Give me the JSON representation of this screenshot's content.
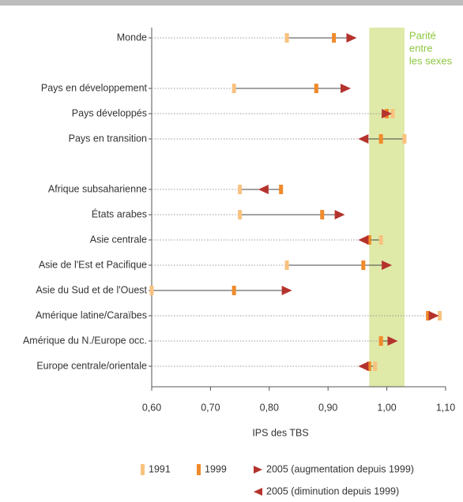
{
  "chart_data": {
    "type": "arrow-dot",
    "categories": [
      "Monde",
      null,
      "Pays en développement",
      "Pays développés",
      "Pays en transition",
      null,
      "Afrique subsaharienne",
      "États arabes",
      "Asie centrale",
      "Asie de l'Est et Pacifique",
      "Asie du Sud et de l'Ouest",
      "Amérique latine/Caraïbes",
      "Amérique du N./Europe occ.",
      "Europe centrale/orientale"
    ],
    "series": [
      {
        "name": "1991",
        "color": "#f9c27f",
        "values": [
          0.83,
          null,
          0.74,
          1.01,
          1.03,
          null,
          0.75,
          0.75,
          0.99,
          0.83,
          0.6,
          1.09,
          0.99,
          0.98
        ]
      },
      {
        "name": "1999",
        "color": "#f08a2b",
        "values": [
          0.91,
          null,
          0.88,
          1.0,
          0.99,
          null,
          0.82,
          0.89,
          0.97,
          0.96,
          0.74,
          1.07,
          0.99,
          0.97
        ]
      },
      {
        "name_increase": "2005 (augmentation depuis 1999)",
        "name_decrease": "2005 (diminution depuis 1999)",
        "color": "#b5332d",
        "values": [
          0.94,
          null,
          0.93,
          1.0,
          0.96,
          null,
          0.79,
          0.92,
          0.96,
          1.0,
          0.83,
          1.08,
          1.01,
          0.96
        ]
      }
    ],
    "xlabel": "IPS des TBS",
    "xlim": [
      0.6,
      1.1
    ],
    "xticks": [
      {
        "value": 0.6,
        "label": "0,60"
      },
      {
        "value": 0.7,
        "label": "0,70"
      },
      {
        "value": 0.8,
        "label": "0,80"
      },
      {
        "value": 0.9,
        "label": "0,90"
      },
      {
        "value": 1.0,
        "label": "1,00"
      },
      {
        "value": 1.1,
        "label": "1,10"
      }
    ],
    "band": {
      "range": [
        0.97,
        1.03
      ],
      "color": "#dfe9a8",
      "label": [
        "Parité",
        "entre",
        "les sexes"
      ]
    }
  }
}
